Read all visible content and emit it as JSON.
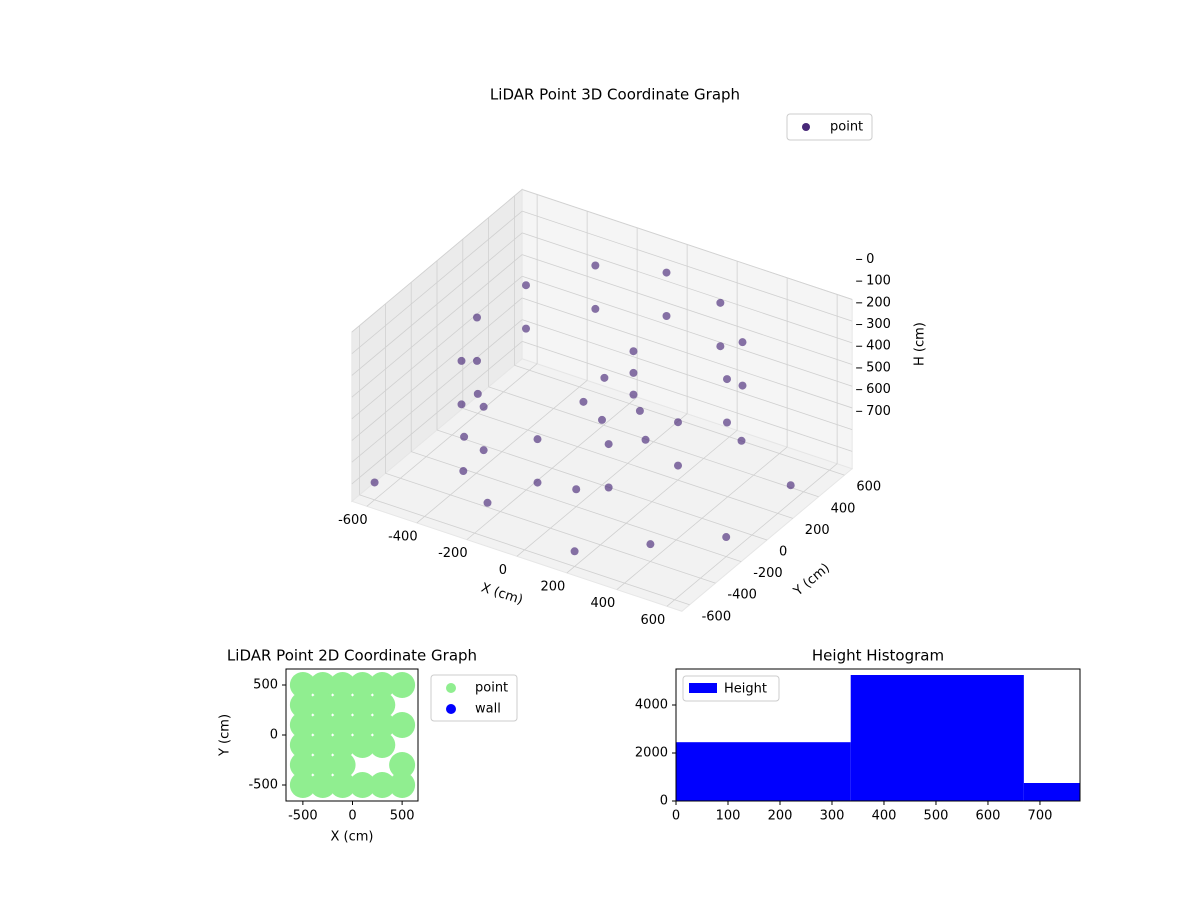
{
  "chart_data": [
    {
      "type": "scatter3d",
      "title": "LiDAR Point 3D Coordinate Graph",
      "x_label": "X (cm)",
      "y_label": "Y (cm)",
      "z_label": "H (cm)",
      "xlim": [
        -660,
        660
      ],
      "ylim": [
        -660,
        660
      ],
      "zlim": [
        0,
        780
      ],
      "z_inverted": true,
      "xticks": [
        -600,
        -400,
        -200,
        0,
        200,
        400,
        600
      ],
      "yticks": [
        -600,
        -400,
        -200,
        0,
        200,
        400,
        600
      ],
      "zticks": [
        0,
        100,
        200,
        300,
        400,
        500,
        600,
        700
      ],
      "series": [
        {
          "name": "point",
          "color": "#482878",
          "x": [
            500,
            433,
            250,
            0,
            -250,
            -433,
            -500,
            -433,
            -250,
            0,
            250,
            433,
            500,
            433,
            250,
            0,
            -250,
            -433,
            -500,
            -433,
            -250,
            0,
            250,
            433,
            -600,
            -400,
            -200,
            0,
            200,
            400,
            600,
            600,
            300,
            -300,
            -600,
            -500,
            100,
            0,
            -100,
            200,
            100,
            100,
            100
          ],
          "y": [
            0,
            250,
            433,
            500,
            433,
            250,
            0,
            -250,
            -433,
            -500,
            -433,
            -250,
            0,
            250,
            433,
            500,
            433,
            250,
            0,
            -250,
            -433,
            -500,
            -433,
            -250,
            -600,
            -300,
            -500,
            -200,
            -600,
            -400,
            -200,
            300,
            500,
            600,
            200,
            -100,
            100,
            0,
            50,
            -50,
            50,
            50,
            50
          ],
          "h": [
            100,
            80,
            60,
            50,
            80,
            150,
            200,
            250,
            300,
            320,
            280,
            200,
            300,
            280,
            260,
            250,
            280,
            350,
            400,
            450,
            500,
            520,
            480,
            400,
            700,
            720,
            690,
            700,
            710,
            700,
            690,
            700,
            710,
            700,
            690,
            700,
            450,
            480,
            460,
            470,
            150,
            250,
            350
          ]
        }
      ],
      "legend": "upper right"
    },
    {
      "type": "scatter",
      "title": "LiDAR Point 2D Coordinate Graph",
      "x_label": "X (cm)",
      "y_label": "Y (cm)",
      "xlim": [
        -670,
        660
      ],
      "ylim": [
        -660,
        660
      ],
      "xticks": [
        -500,
        0,
        500
      ],
      "yticks": [
        -500,
        0,
        500
      ],
      "series": [
        {
          "name": "point",
          "color": "#90ee90",
          "x": [
            -500,
            -300,
            -100,
            100,
            300,
            500,
            -500,
            -300,
            -100,
            100,
            300,
            -500,
            -300,
            -100,
            100,
            300,
            500,
            -500,
            -300,
            -100,
            100,
            300,
            -500,
            -300,
            -100,
            500,
            -500,
            -300,
            -100,
            100,
            300,
            500
          ],
          "y": [
            500,
            500,
            500,
            500,
            500,
            500,
            300,
            300,
            300,
            300,
            300,
            100,
            100,
            100,
            100,
            100,
            100,
            -100,
            -100,
            -100,
            -100,
            -100,
            -300,
            -300,
            -300,
            -300,
            -500,
            -500,
            -500,
            -500,
            -500,
            -500
          ]
        },
        {
          "name": "wall",
          "color": "#0000ff",
          "x": [],
          "y": []
        }
      ],
      "legend": "outside right"
    },
    {
      "type": "histogram",
      "title": "Height Histogram",
      "bins": [
        0,
        336,
        669,
        777
      ],
      "counts": [
        2450,
        5250,
        750
      ],
      "series_name": "Height",
      "color": "#0000ff",
      "xlim": [
        0,
        777
      ],
      "ylim": [
        0,
        5500
      ],
      "xticks": [
        0,
        100,
        200,
        300,
        400,
        500,
        600,
        700
      ],
      "yticks": [
        0,
        2000,
        4000
      ],
      "legend": "upper left"
    }
  ]
}
